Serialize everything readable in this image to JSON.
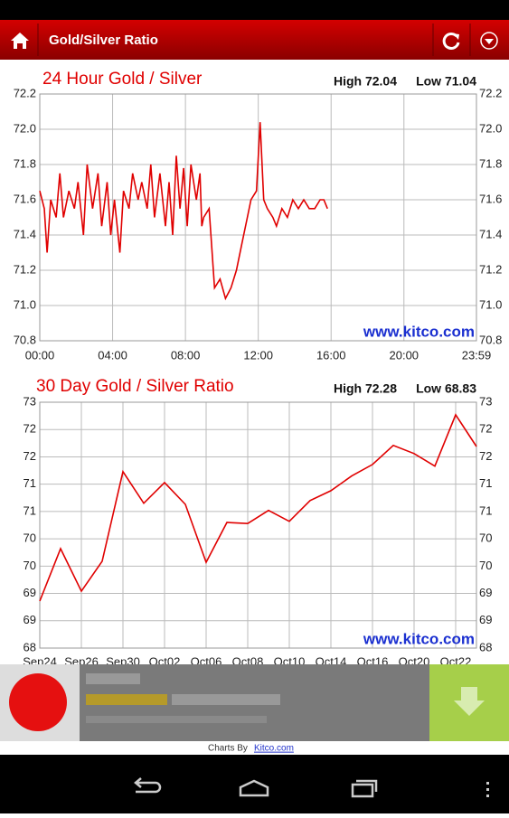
{
  "app_bar": {
    "title": "Gold/Silver Ratio"
  },
  "chart_data": [
    {
      "type": "line",
      "title": "24 Hour Gold / Silver",
      "annotations": [
        "High 72.04",
        "Low 71.04"
      ],
      "watermark": "www.kitco.com",
      "x": [
        0,
        0.25,
        0.4,
        0.6,
        0.9,
        1.1,
        1.3,
        1.6,
        1.9,
        2.1,
        2.4,
        2.6,
        2.9,
        3.2,
        3.4,
        3.7,
        3.9,
        4.1,
        4.4,
        4.6,
        4.9,
        5.1,
        5.4,
        5.6,
        5.9,
        6.1,
        6.3,
        6.6,
        6.9,
        7.1,
        7.3,
        7.5,
        7.7,
        7.9,
        8.1,
        8.3,
        8.6,
        8.8,
        8.9,
        9.0,
        9.3,
        9.6,
        9.9,
        10.2,
        10.5,
        10.8,
        11.1,
        11.4,
        11.6,
        11.9,
        12.1,
        12.3,
        12.5,
        12.8,
        13.0,
        13.3,
        13.6,
        13.9,
        14.2,
        14.5,
        14.8,
        15.1,
        15.4,
        15.6,
        15.8
      ],
      "values": [
        71.65,
        71.55,
        71.3,
        71.6,
        71.5,
        71.75,
        71.5,
        71.65,
        71.55,
        71.7,
        71.4,
        71.8,
        71.55,
        71.75,
        71.45,
        71.7,
        71.4,
        71.6,
        71.3,
        71.65,
        71.55,
        71.75,
        71.6,
        71.7,
        71.55,
        71.8,
        71.5,
        71.75,
        71.45,
        71.7,
        71.4,
        71.85,
        71.55,
        71.78,
        71.45,
        71.8,
        71.6,
        71.75,
        71.45,
        71.5,
        71.55,
        71.1,
        71.15,
        71.04,
        71.1,
        71.2,
        71.35,
        71.5,
        71.6,
        71.65,
        72.04,
        71.6,
        71.55,
        71.5,
        71.45,
        71.55,
        71.5,
        71.6,
        71.55,
        71.6,
        71.55,
        71.55,
        71.6,
        71.6,
        71.55
      ],
      "color": "#e00000",
      "xlim": [
        0,
        23.9833
      ],
      "xticks": [
        {
          "value": 0,
          "label": "00:00"
        },
        {
          "value": 4,
          "label": "04:00"
        },
        {
          "value": 8,
          "label": "08:00"
        },
        {
          "value": 12,
          "label": "12:00"
        },
        {
          "value": 16,
          "label": "16:00"
        },
        {
          "value": 20,
          "label": "20:00"
        },
        {
          "value": 23.9833,
          "label": "23:59"
        }
      ],
      "ylim": [
        70.8,
        72.2
      ],
      "yticks": [
        70.8,
        {
          "value": 71,
          "label": "71.0"
        },
        71.2,
        71.4,
        71.6,
        71.8,
        {
          "value": 72,
          "label": "72.0"
        },
        72.2
      ],
      "grid": true
    },
    {
      "type": "line",
      "title": "30 Day Gold / Silver Ratio",
      "annotations": [
        "High 72.28",
        "Low 68.83"
      ],
      "watermark": "www.kitco.com",
      "categories": [
        "Sep24",
        null,
        "Sep26",
        null,
        "Sep30",
        null,
        "Oct02",
        null,
        "Oct06",
        null,
        "Oct08",
        null,
        "Oct10",
        null,
        "Oct14",
        null,
        "Oct16",
        null,
        "Oct20",
        null,
        "Oct22",
        null
      ],
      "values": [
        68.86,
        69.82,
        69.04,
        69.59,
        71.23,
        70.65,
        71.03,
        70.63,
        69.57,
        70.3,
        70.28,
        70.52,
        70.32,
        70.7,
        70.88,
        71.15,
        71.36,
        71.71,
        71.56,
        71.33,
        72.27,
        71.69
      ],
      "color": "#e00000",
      "ylim": [
        68,
        72.5
      ],
      "yticks": [
        68,
        {
          "value": 68.5,
          "label": "69"
        },
        69,
        {
          "value": 69.5,
          "label": "70"
        },
        70,
        {
          "value": 70.5,
          "label": "71"
        },
        71,
        {
          "value": 71.5,
          "label": "72"
        },
        72,
        {
          "value": 72.5,
          "label": "73"
        }
      ],
      "grid": true
    }
  ],
  "footer": {
    "prefix": "Charts By",
    "link": "Kitco.com"
  }
}
